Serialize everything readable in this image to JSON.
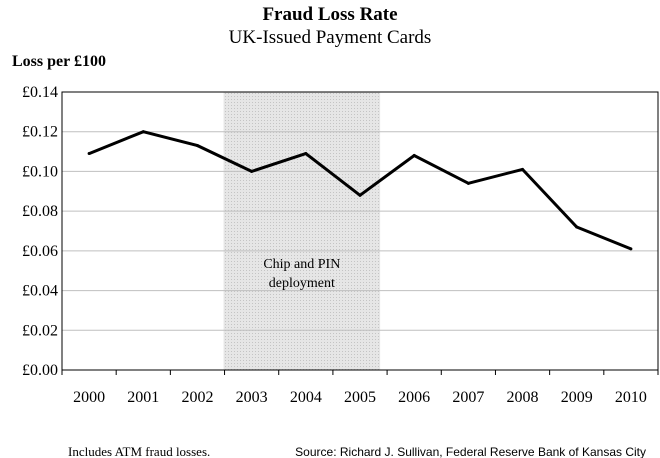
{
  "chart_data": {
    "type": "line",
    "title": "Fraud Loss Rate",
    "subtitle": "UK-Issued Payment Cards",
    "ylabel": "Loss per £100",
    "ylim": [
      0,
      0.14
    ],
    "ytick_values": [
      0,
      0.02,
      0.04,
      0.06,
      0.08,
      0.1,
      0.12,
      0.14
    ],
    "ytick_labels": [
      "£0.00",
      "£0.02",
      "£0.04",
      "£0.06",
      "£0.08",
      "£0.10",
      "£0.12",
      "£0.14"
    ],
    "categories": [
      "2000",
      "2001",
      "2002",
      "2003",
      "2004",
      "2005",
      "2006",
      "2007",
      "2008",
      "2009",
      "2010"
    ],
    "series": [
      {
        "values": [
          0.109,
          0.12,
          0.113,
          0.1,
          0.109,
          0.088,
          0.108,
          0.094,
          0.101,
          0.072,
          0.061
        ]
      }
    ],
    "grid": true,
    "shaded_region": {
      "from": "2003",
      "to": "2006",
      "label_lines": [
        "Chip and PIN",
        "deployment"
      ]
    },
    "footnote": "Includes ATM fraud losses.",
    "source": "Source: Richard J. Sullivan, Federal Reserve Bank of Kansas City",
    "colors": {
      "line": "#000000",
      "grid": "#bfbfbf",
      "shade": "#d9d9d9",
      "axis": "#000000"
    }
  }
}
